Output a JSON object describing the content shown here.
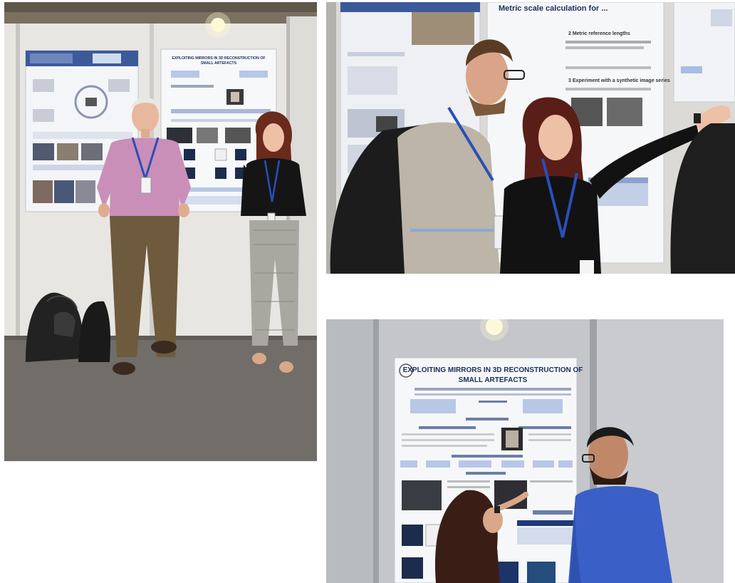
{
  "photos": [
    {
      "id": "photo-left",
      "scene": "two presenters standing in front of poster board",
      "poster_title": "EXPLOITING MIRRORS IN 3D RECONSTRUCTION OF SMALL ARTEFACTS"
    },
    {
      "id": "photo-top-right",
      "scene": "presenter explaining poster to visitor",
      "poster_title": "Metric scale calculation for ...",
      "poster_sections": [
        "Metric reference lengths",
        "Experiment with a synthetic image series"
      ]
    },
    {
      "id": "photo-bottom-right",
      "scene": "two people discussing poster",
      "poster_title": "EXPLOITING MIRRORS IN 3D RECONSTRUCTION OF SMALL ARTEFACTS"
    }
  ],
  "colors": {
    "wall": "#e6e4e0",
    "carpet": "#6e6a66",
    "poster_bg": "#f5f6f8",
    "lanyard": "#2a4fb8",
    "shirt_pink": "#c98fb8",
    "shirt_blue": "#3a5fc6",
    "board_grey": "#b5b8bc"
  }
}
